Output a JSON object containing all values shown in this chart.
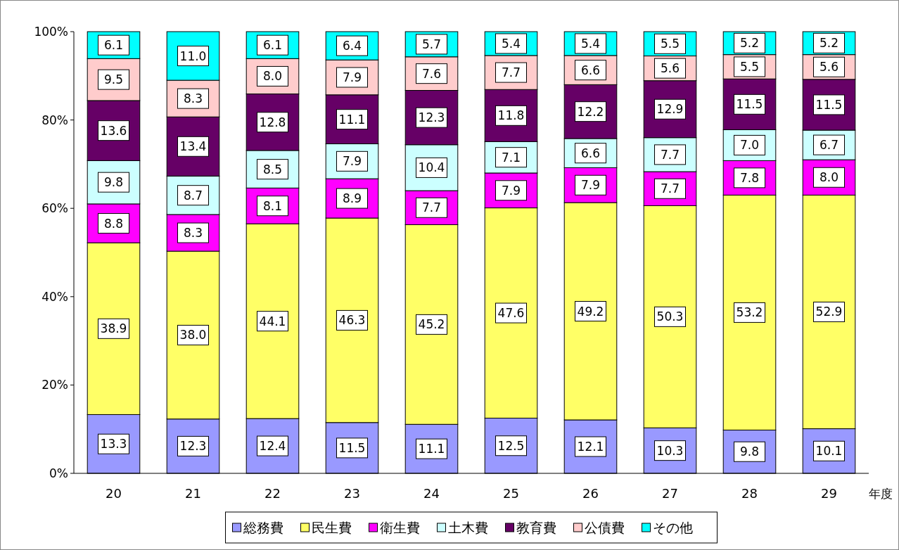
{
  "chart_data": {
    "type": "bar",
    "stacked": true,
    "xlabel": "年度",
    "categories": [
      "20",
      "21",
      "22",
      "23",
      "24",
      "25",
      "26",
      "27",
      "28",
      "29"
    ],
    "ylim": [
      0,
      100
    ],
    "yticks": [
      {
        "value": 0,
        "label": "0%"
      },
      {
        "value": 20,
        "label": "20%"
      },
      {
        "value": 40,
        "label": "40%"
      },
      {
        "value": 60,
        "label": "60%"
      },
      {
        "value": 80,
        "label": "80%"
      },
      {
        "value": 100,
        "label": "100%"
      }
    ],
    "grid": false,
    "legend": "bottom",
    "series": [
      {
        "name": "総務費",
        "color": "#9999ff",
        "values": [
          13.3,
          12.3,
          12.4,
          11.5,
          11.1,
          12.5,
          12.1,
          10.3,
          9.8,
          10.1
        ],
        "value_labels": [
          "13.3",
          "12.3",
          "12.4",
          "11.5",
          "11.1",
          "12.5",
          "12.1",
          "10.3",
          "9.8",
          "10.1"
        ]
      },
      {
        "name": "民生費",
        "color": "#ffff66",
        "values": [
          38.9,
          38.0,
          44.1,
          46.3,
          45.2,
          47.6,
          49.2,
          50.3,
          53.2,
          52.9
        ],
        "value_labels": [
          "38.9",
          "38.0",
          "44.1",
          "46.3",
          "45.2",
          "47.6",
          "49.2",
          "50.3",
          "53.2",
          "52.9"
        ]
      },
      {
        "name": "衛生費",
        "color": "#ff00ff",
        "values": [
          8.8,
          8.3,
          8.1,
          8.9,
          7.7,
          7.9,
          7.9,
          7.7,
          7.8,
          8.0
        ],
        "value_labels": [
          "8.8",
          "8.3",
          "8.1",
          "8.9",
          "7.7",
          "7.9",
          "7.9",
          "7.7",
          "7.8",
          "8.0"
        ]
      },
      {
        "name": "土木費",
        "color": "#ccffff",
        "values": [
          9.8,
          8.7,
          8.5,
          7.9,
          10.4,
          7.1,
          6.6,
          7.7,
          7.0,
          6.7
        ],
        "value_labels": [
          "9.8",
          "8.7",
          "8.5",
          "7.9",
          "10.4",
          "7.1",
          "6.6",
          "7.7",
          "7.0",
          "6.7"
        ]
      },
      {
        "name": "教育費",
        "color": "#660066",
        "values": [
          13.6,
          13.4,
          12.8,
          11.1,
          12.3,
          11.8,
          12.2,
          12.9,
          11.5,
          11.5
        ],
        "value_labels": [
          "13.6",
          "13.4",
          "12.8",
          "11.1",
          "12.3",
          "11.8",
          "12.2",
          "12.9",
          "11.5",
          "11.5"
        ]
      },
      {
        "name": "公債費",
        "color": "#ffcccc",
        "values": [
          9.5,
          8.3,
          8.0,
          7.9,
          7.6,
          7.7,
          6.6,
          5.6,
          5.5,
          5.6
        ],
        "value_labels": [
          "9.5",
          "8.3",
          "8.0",
          "7.9",
          "7.6",
          "7.7",
          "6.6",
          "5.6",
          "5.5",
          "5.6"
        ]
      },
      {
        "name": "その他",
        "color": "#00ffff",
        "values": [
          6.1,
          11.0,
          6.1,
          6.4,
          5.7,
          5.4,
          5.4,
          5.5,
          5.2,
          5.2
        ],
        "value_labels": [
          "6.1",
          "11.0",
          "6.1",
          "6.4",
          "5.7",
          "5.4",
          "5.4",
          "5.5",
          "5.2",
          "5.2"
        ]
      }
    ]
  }
}
